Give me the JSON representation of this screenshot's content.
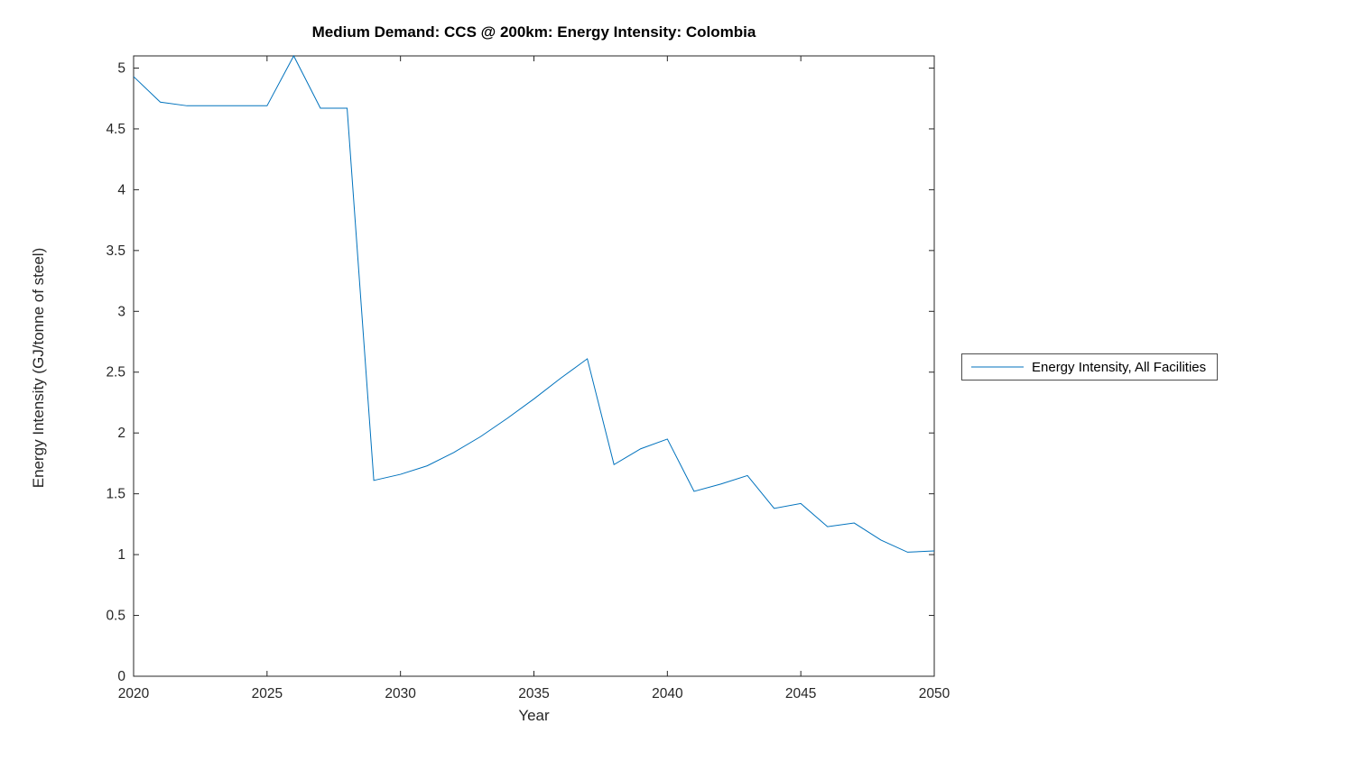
{
  "chart_data": {
    "type": "line",
    "title": "Medium Demand: CCS @ 200km: Energy Intensity: Colombia",
    "xlabel": "Year",
    "ylabel": "Energy Intensity (GJ/tonne of steel)",
    "xlim": [
      2020,
      2050
    ],
    "ylim": [
      0,
      5.1
    ],
    "xticks": [
      2020,
      2025,
      2030,
      2035,
      2040,
      2045,
      2050
    ],
    "yticks": [
      0,
      0.5,
      1,
      1.5,
      2,
      2.5,
      3,
      3.5,
      4,
      4.5,
      5
    ],
    "grid": false,
    "legend_position": "right-outside",
    "axis_color": "#262626",
    "series": [
      {
        "name": "Energy Intensity, All Facilities",
        "color": "#0072BD",
        "x": [
          2020,
          2021,
          2022,
          2023,
          2024,
          2025,
          2026,
          2027,
          2028,
          2029,
          2030,
          2031,
          2032,
          2033,
          2034,
          2035,
          2036,
          2037,
          2038,
          2039,
          2040,
          2041,
          2042,
          2043,
          2044,
          2045,
          2046,
          2047,
          2048,
          2049,
          2050
        ],
        "values": [
          4.93,
          4.72,
          4.69,
          4.69,
          4.69,
          4.69,
          5.1,
          4.67,
          4.67,
          1.61,
          1.66,
          1.73,
          1.84,
          1.97,
          2.12,
          2.28,
          2.45,
          2.61,
          1.74,
          1.87,
          1.95,
          1.52,
          1.58,
          1.65,
          1.38,
          1.42,
          1.23,
          1.26,
          1.12,
          1.02,
          1.03
        ]
      }
    ]
  },
  "legend": {
    "entries": [
      {
        "label": "Energy Intensity, All Facilities"
      }
    ]
  }
}
